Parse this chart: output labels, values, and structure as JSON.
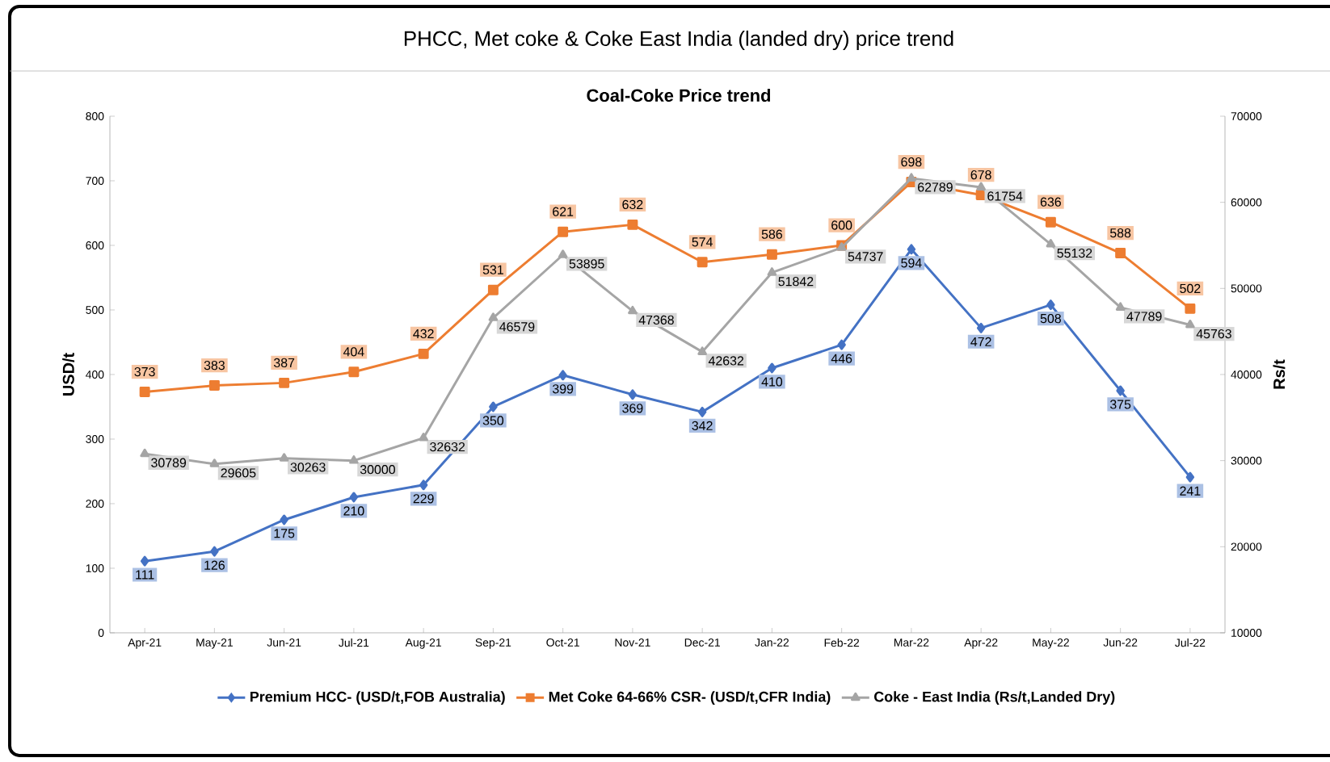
{
  "chart_data": {
    "type": "line",
    "title": "PHCC, Met coke & Coke East India (landed dry) price trend",
    "subtitle": "Coal-Coke Price trend",
    "ylabel": "USD/t",
    "y2label": "Rs/t",
    "categories": [
      "Apr-21",
      "May-21",
      "Jun-21",
      "Jul-21",
      "Aug-21",
      "Sep-21",
      "Oct-21",
      "Nov-21",
      "Dec-21",
      "Jan-22",
      "Feb-22",
      "Mar-22",
      "Apr-22",
      "May-22",
      "Jun-22",
      "Jul-22"
    ],
    "series": [
      {
        "name": "Premium HCC- (USD/t,FOB Australia)",
        "color": "#4472c4",
        "marker": "diamond",
        "values": [
          111,
          126,
          175,
          210,
          229,
          350,
          399,
          369,
          342,
          410,
          446,
          594,
          472,
          508,
          375,
          241
        ]
      },
      {
        "name": "Met Coke 64-66% CSR- (USD/t,CFR India)",
        "color": "#ed7d31",
        "marker": "square",
        "values": [
          373,
          383,
          387,
          404,
          432,
          531,
          621,
          632,
          574,
          586,
          600,
          698,
          678,
          636,
          588,
          502
        ]
      },
      {
        "name": "Coke - East India (Rs/t,Landed Dry)",
        "color": "#a5a5a5",
        "marker": "triangle",
        "axis": "y2",
        "values": [
          30789,
          29605,
          30263,
          30000,
          32632,
          46579,
          53895,
          47368,
          42632,
          51842,
          54737,
          62789,
          61754,
          55132,
          47789,
          45763
        ]
      }
    ],
    "ylim": [
      0,
      800
    ],
    "yticks": [
      0,
      100,
      200,
      300,
      400,
      500,
      600,
      700,
      800
    ],
    "y2lim": [
      10000,
      70000
    ],
    "y2ticks": [
      10000,
      20000,
      30000,
      40000,
      50000,
      60000,
      70000
    ],
    "data_labels": true,
    "legend": "bottom",
    "grid": false
  }
}
